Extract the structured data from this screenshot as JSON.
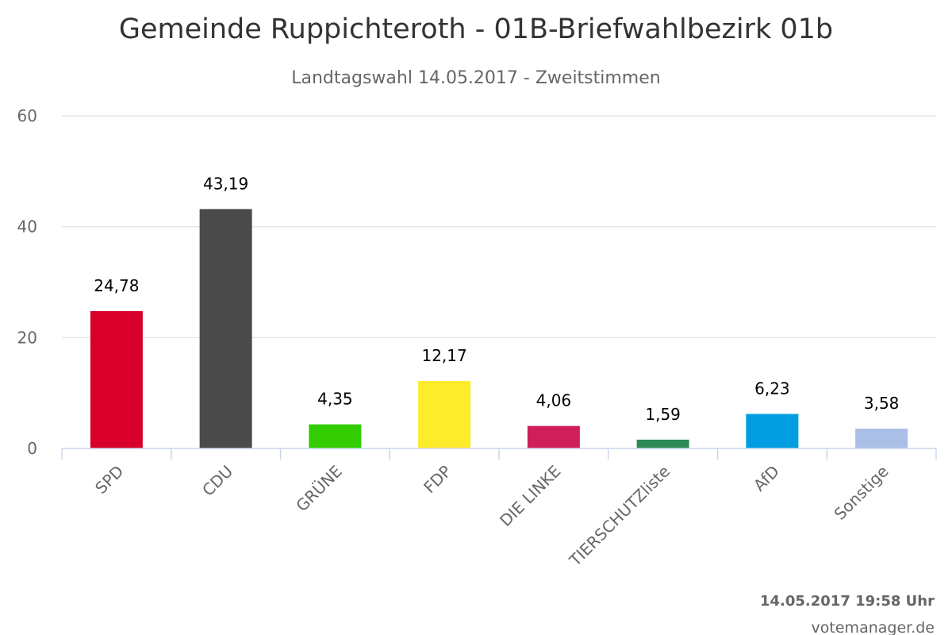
{
  "chart_data": {
    "type": "bar",
    "title": "Gemeinde Ruppichteroth - 01B-Briefwahlbezirk 01b",
    "subtitle": "Landtagswahl 14.05.2017 - Zweitstimmen",
    "categories": [
      "SPD",
      "CDU",
      "GRÜNE",
      "FDP",
      "DIE LINKE",
      "TIERSCHUTZliste",
      "AfD",
      "Sonstige"
    ],
    "values": [
      24.78,
      43.19,
      4.35,
      12.17,
      4.06,
      1.59,
      6.23,
      3.58
    ],
    "value_labels": [
      "24,78",
      "43,19",
      "4,35",
      "12,17",
      "4,06",
      "1,59",
      "6,23",
      "3,58"
    ],
    "colors": [
      "#d8002a",
      "#4a4a4a",
      "#33cc00",
      "#fcec2c",
      "#cf1f5b",
      "#2b8a55",
      "#009de0",
      "#aabfe6"
    ],
    "ylim": [
      0,
      60
    ],
    "yticks": [
      "0",
      "20",
      "40",
      "60"
    ],
    "ytick_values": [
      0,
      20,
      40,
      60
    ],
    "grid": true,
    "legend": "none"
  },
  "footer": {
    "timestamp": "14.05.2017 19:58 Uhr",
    "credit": "votemanager.de"
  }
}
